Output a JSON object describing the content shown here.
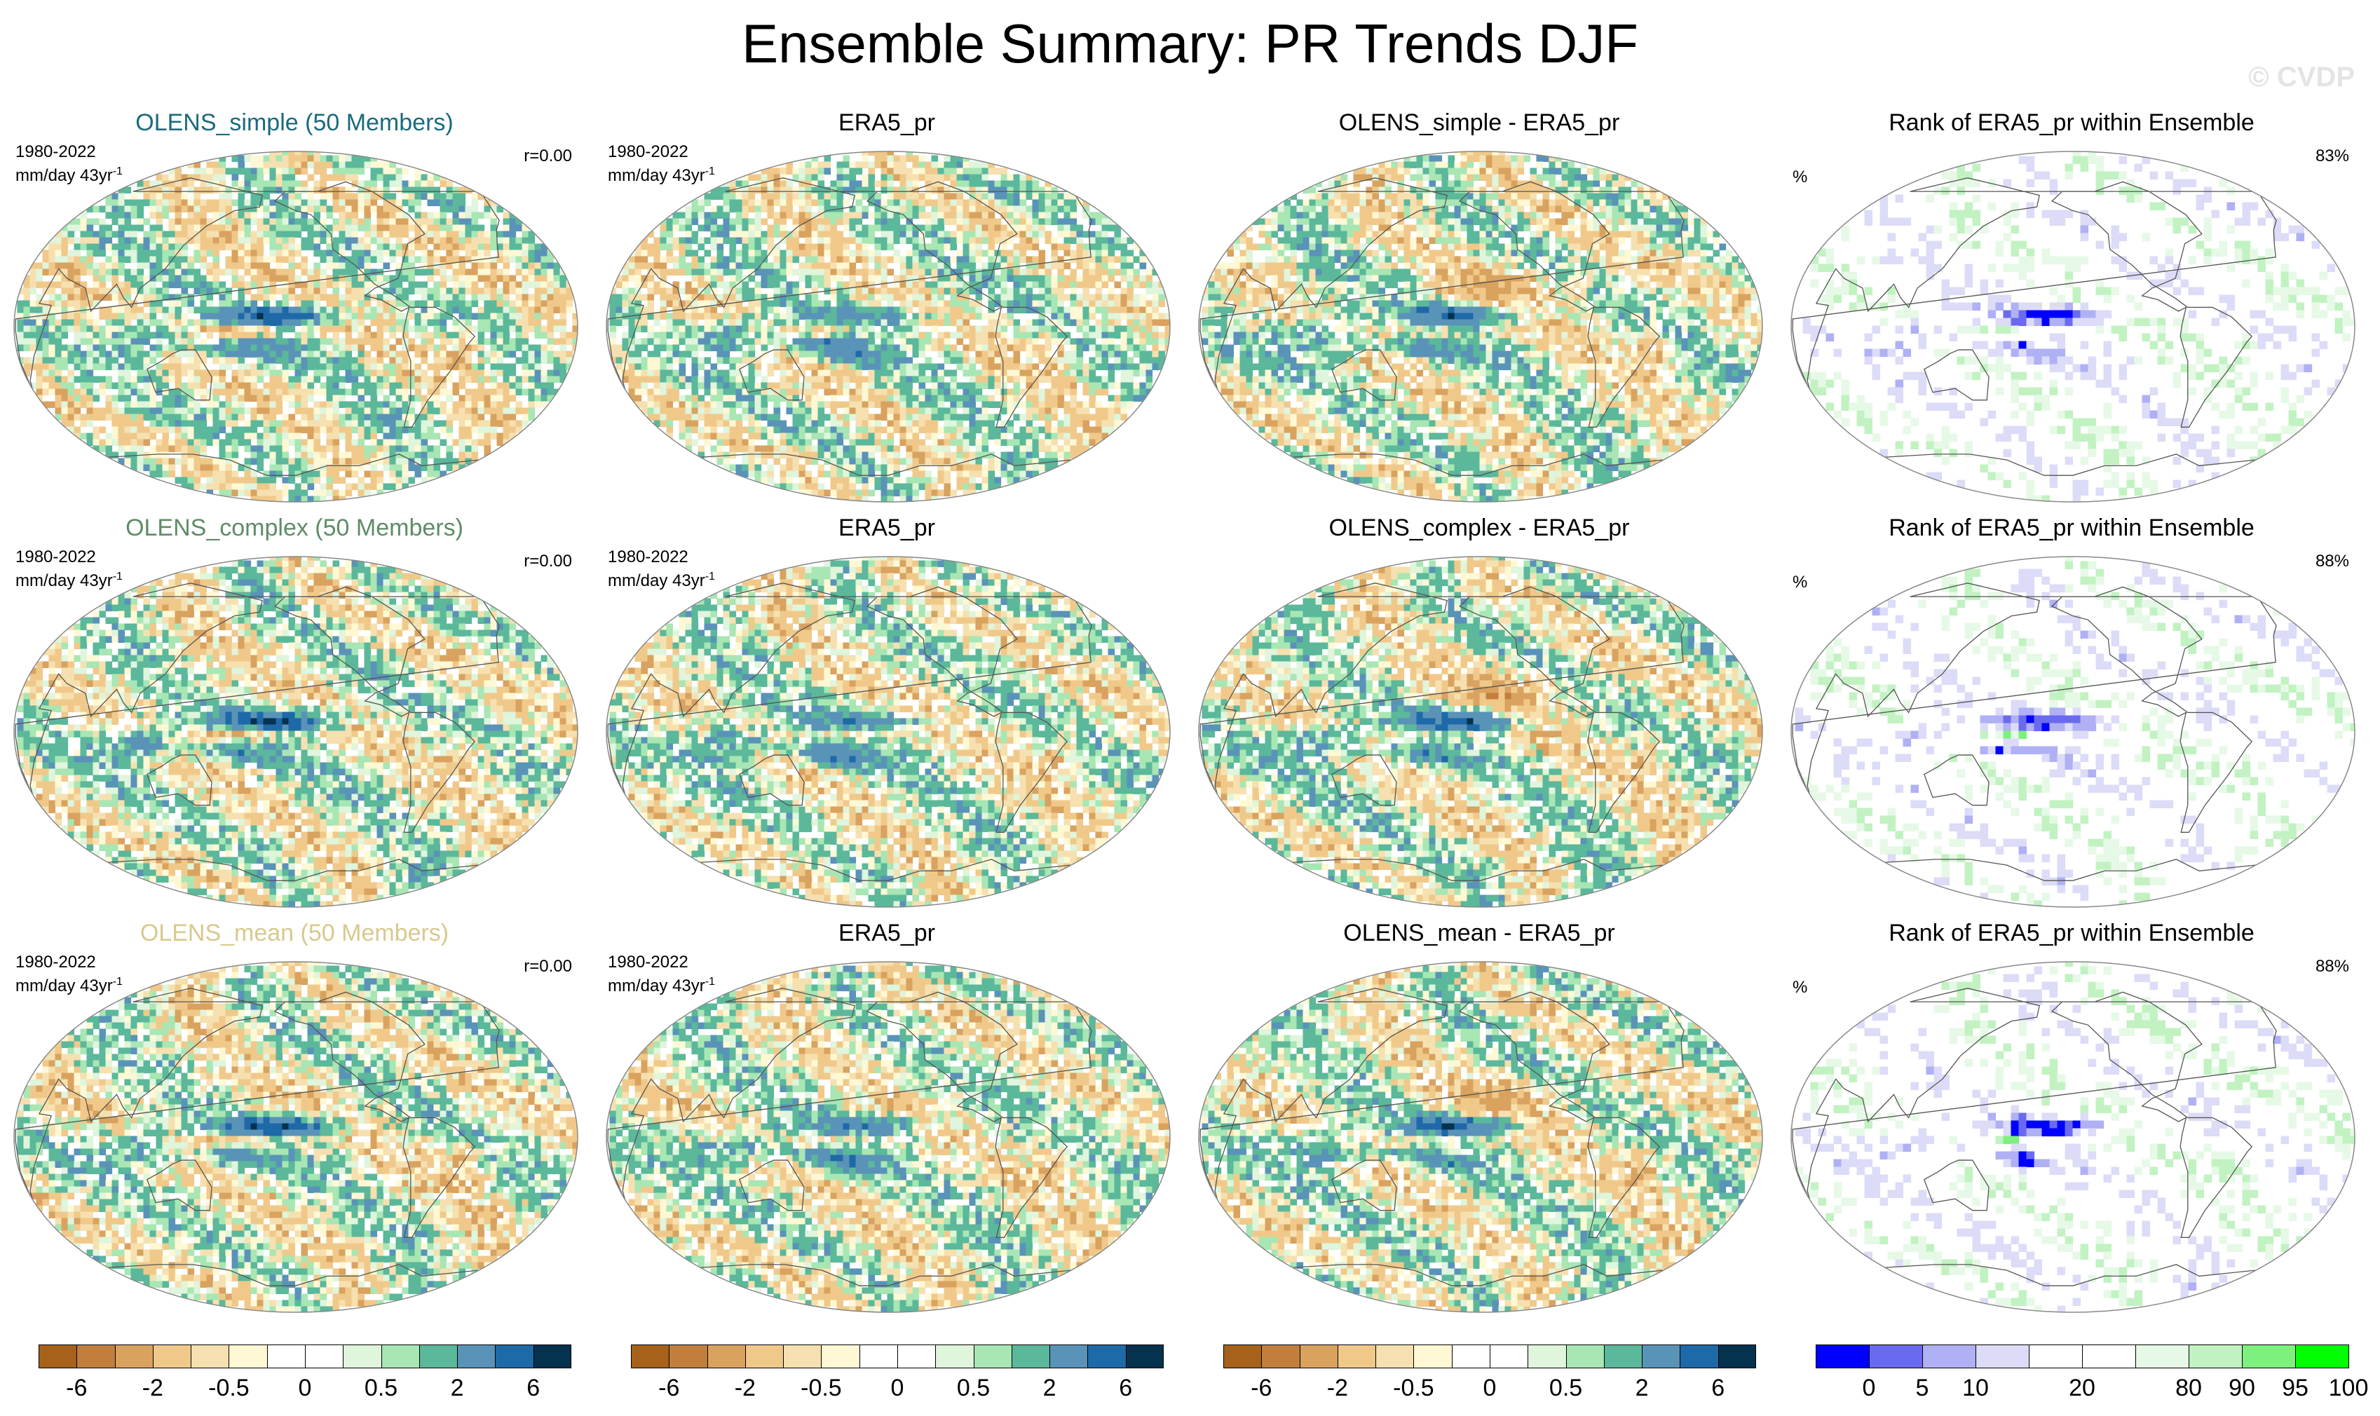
{
  "page": {
    "title": "Ensemble Summary: PR Trends DJF",
    "watermark": "© CVDP"
  },
  "colors": {
    "title_simple": "#1a6b7c",
    "title_complex": "#5f8c67",
    "title_mean": "#d8c98e",
    "diverging": [
      "#a6611a",
      "#c17f3e",
      "#d9a25f",
      "#f0c98a",
      "#f6e0b0",
      "#fff8d4",
      "#ffffff",
      "#ffffff",
      "#dff5dc",
      "#a8e6b4",
      "#5bb89a",
      "#5a93b8",
      "#1e69a8",
      "#05324f"
    ],
    "rank": [
      "#0000ff",
      "#6a6af0",
      "#b0b0f4",
      "#dcdcf8",
      "#ffffff",
      "#ffffff",
      "#e6f9e6",
      "#c2f2c2",
      "#7df07d",
      "#00ff00"
    ],
    "ocean": "#ffffff",
    "coast": "#555555"
  },
  "rows": [
    {
      "key": "simple",
      "ens_title": "OLENS_simple (50 Members)",
      "ens_period": "1980-2022",
      "ens_units": "mm/day 43yr",
      "ens_sup": "-1",
      "ens_r": "r=0.00",
      "obs_title": "ERA5_pr",
      "obs_period": "1980-2022",
      "obs_units": "mm/day 43yr",
      "obs_sup": "-1",
      "diff_title": "OLENS_simple - ERA5_pr",
      "rank_title": "Rank of ERA5_pr within Ensemble",
      "rank_unit": "%",
      "rank_pct": "83%"
    },
    {
      "key": "complex",
      "ens_title": "OLENS_complex (50 Members)",
      "ens_period": "1980-2022",
      "ens_units": "mm/day 43yr",
      "ens_sup": "-1",
      "ens_r": "r=0.00",
      "obs_title": "ERA5_pr",
      "obs_period": "1980-2022",
      "obs_units": "mm/day 43yr",
      "obs_sup": "-1",
      "diff_title": "OLENS_complex - ERA5_pr",
      "rank_title": "Rank of ERA5_pr within Ensemble",
      "rank_unit": "%",
      "rank_pct": "88%"
    },
    {
      "key": "mean",
      "ens_title": "OLENS_mean (50 Members)",
      "ens_period": "1980-2022",
      "ens_units": "mm/day 43yr",
      "ens_sup": "-1",
      "ens_r": "r=0.00",
      "obs_title": "ERA5_pr",
      "obs_period": "1980-2022",
      "obs_units": "mm/day 43yr",
      "obs_sup": "-1",
      "diff_title": "OLENS_mean - ERA5_pr",
      "rank_title": "Rank of ERA5_pr within Ensemble",
      "rank_unit": "%",
      "rank_pct": "88%"
    }
  ],
  "chart_data": {
    "type": "heatmap",
    "title": "Ensemble Summary: PR Trends DJF",
    "period": "1980-2022",
    "units": "mm/day 43yr-1",
    "projection": "global map (equal-area oval)",
    "panels": [
      [
        "OLENS_simple (50 Members)",
        "ERA5_pr",
        "OLENS_simple - ERA5_pr",
        "Rank of ERA5_pr within Ensemble"
      ],
      [
        "OLENS_complex (50 Members)",
        "ERA5_pr",
        "OLENS_complex - ERA5_pr",
        "Rank of ERA5_pr within Ensemble"
      ],
      [
        "OLENS_mean (50 Members)",
        "ERA5_pr",
        "OLENS_mean - ERA5_pr",
        "Rank of ERA5_pr within Ensemble"
      ]
    ],
    "pattern_correlation": [
      "r=0.00",
      "r=0.00",
      "r=0.00"
    ],
    "rank_percent": [
      "83%",
      "88%",
      "88%"
    ],
    "colorbars": [
      {
        "labels": [
          "-6",
          "-2",
          "-0.5",
          "0",
          "0.5",
          "2",
          "6"
        ],
        "bins": 14
      },
      {
        "labels": [
          "-6",
          "-2",
          "-0.5",
          "0",
          "0.5",
          "2",
          "6"
        ],
        "bins": 14
      },
      {
        "labels": [
          "-6",
          "-2",
          "-0.5",
          "0",
          "0.5",
          "2",
          "6"
        ],
        "bins": 14
      },
      {
        "labels": [
          "0",
          "5",
          "10",
          "20",
          "80",
          "90",
          "95",
          "100"
        ],
        "bins": 10
      }
    ]
  }
}
